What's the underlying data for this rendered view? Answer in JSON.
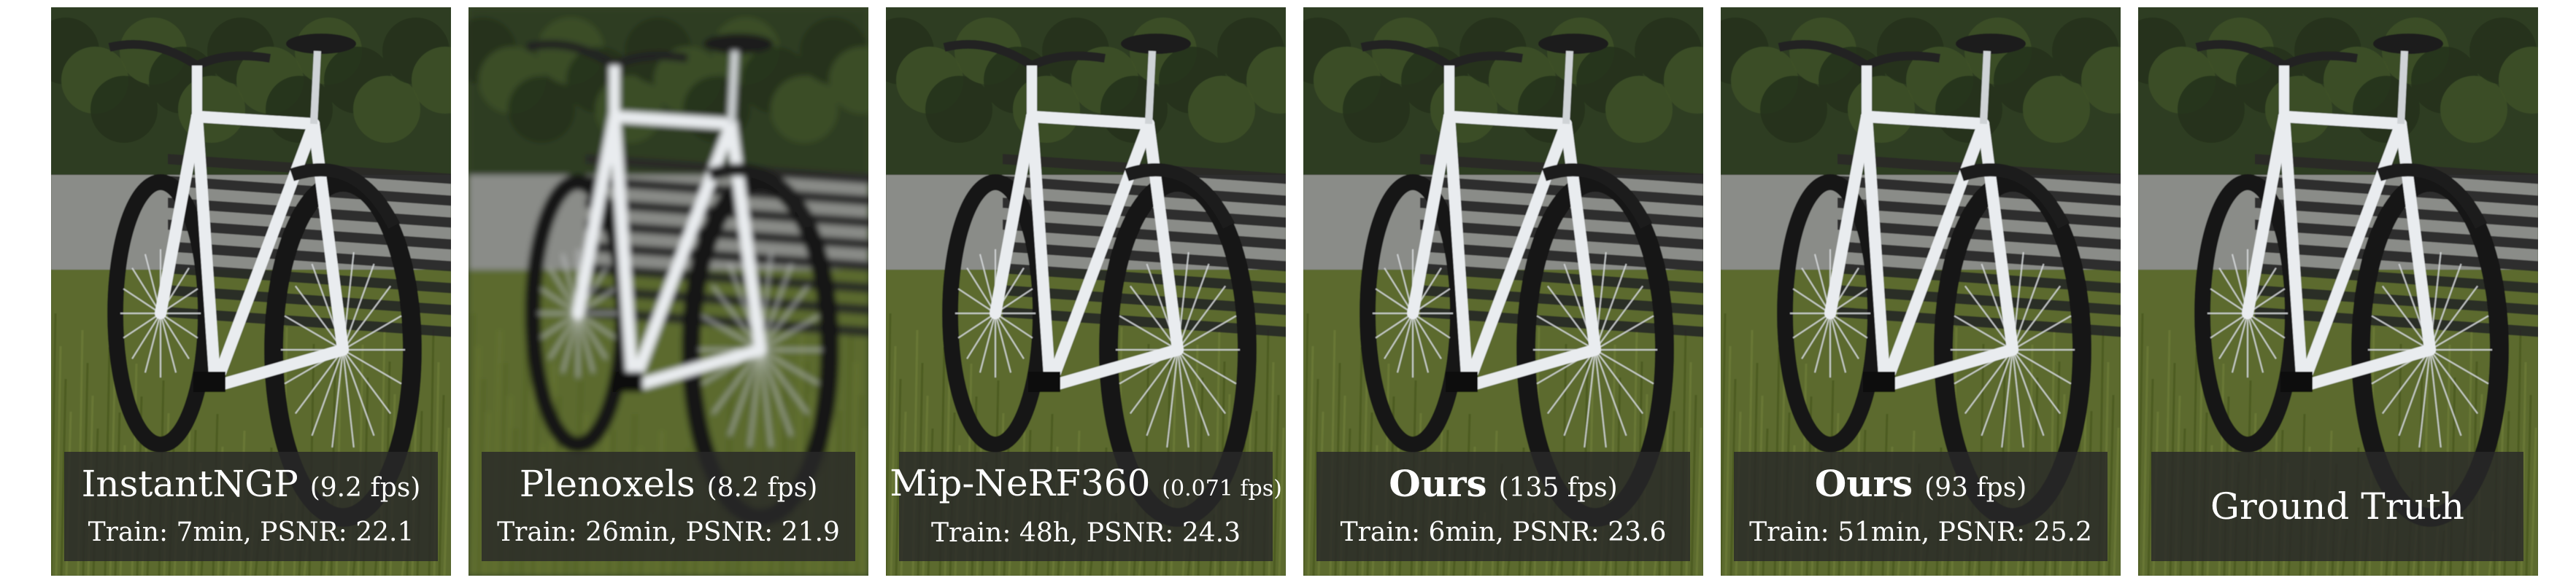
{
  "panels": [
    {
      "method": "InstantNGP",
      "fps": "(9.2 fps)",
      "train": "Train: 7min, PSNR: 22.1",
      "bold": false
    },
    {
      "method": "Plenoxels",
      "fps": "(8.2 fps)",
      "train": "Train: 26min, PSNR: 21.9",
      "bold": false
    },
    {
      "method": "Mip-NeRF360",
      "fps": "(0.071 fps)",
      "train": "Train: 48h, PSNR: 24.3",
      "bold": false
    },
    {
      "method": "Ours",
      "fps": "(135 fps)",
      "train": "Train: 6min, PSNR: 23.6",
      "bold": true
    },
    {
      "method": "Ours",
      "fps": "(93 fps)",
      "train": "Train: 51min, PSNR: 25.2",
      "bold": true
    },
    {
      "method": "Ground Truth",
      "fps": "",
      "train": "",
      "bold": false
    }
  ],
  "image_subject": "bicycle-leaning-on-bench-photo",
  "colors": {
    "caption_bg": "#282828",
    "caption_text": "#ffffff",
    "foliage": "#2f3d22",
    "path": "#8a8c88",
    "grass": "#5b6b2e",
    "frame": "#e9ecef",
    "tire": "#161616"
  }
}
